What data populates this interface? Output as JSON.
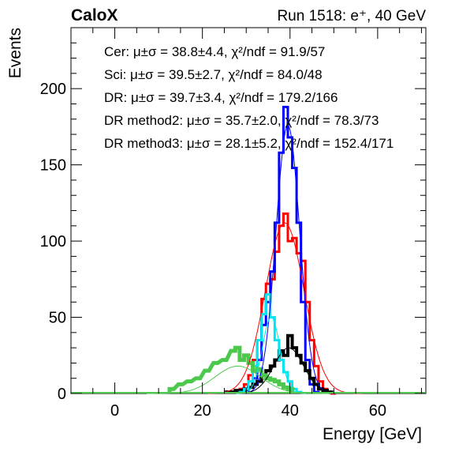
{
  "header": {
    "experiment": "CaloX",
    "run_info": "Run 1518: e⁺, 40 GeV"
  },
  "colors": {
    "cer": "#ff0000",
    "sci": "#0000ff",
    "dr": "#000000",
    "dr_method2": "#00e5ee",
    "dr_method3": "#4cc94c",
    "axes": "#000000"
  },
  "chart_data": {
    "type": "line",
    "xlabel": "Energy [GeV]",
    "ylabel": "Events",
    "xlim": [
      -10,
      71
    ],
    "ylim": [
      0,
      240
    ],
    "x_ticks": [
      0,
      20,
      40,
      60
    ],
    "y_ticks": [
      0,
      50,
      100,
      150,
      200
    ],
    "annotations": [
      "Cer: μ±σ = 38.8±4.4, χ²/ndf = 91.9/57",
      "Sci: μ±σ = 39.5±2.7, χ²/ndf = 84.0/48",
      "DR: μ±σ = 39.7±3.4, χ²/ndf = 179.2/166",
      "DR method2: μ±σ = 35.7±2.0, χ²/ndf = 78.3/73",
      "DR method3: μ±σ = 28.1±5.2, χ²/ndf = 152.4/171"
    ],
    "series": [
      {
        "key": "cer",
        "style": "step",
        "x": [
          28,
          29,
          30,
          31,
          32,
          33,
          34,
          35,
          36,
          37,
          38,
          39,
          40,
          41,
          42,
          43,
          44,
          45,
          46,
          47,
          48,
          49,
          50
        ],
        "y": [
          1,
          3,
          6,
          12,
          22,
          35,
          62,
          72,
          75,
          93,
          110,
          118,
          100,
          102,
          92,
          87,
          60,
          35,
          18,
          8,
          3,
          1,
          0
        ]
      },
      {
        "key": "sci",
        "style": "step",
        "x": [
          30,
          31,
          32,
          33,
          34,
          35,
          36,
          37,
          38,
          39,
          40,
          41,
          42,
          43,
          44,
          45,
          46
        ],
        "y": [
          1,
          4,
          10,
          22,
          45,
          60,
          80,
          112,
          158,
          188,
          168,
          148,
          112,
          60,
          22,
          6,
          1
        ]
      },
      {
        "key": "dr",
        "style": "step",
        "x": [
          26,
          27,
          28,
          29,
          30,
          31,
          32,
          33,
          34,
          35,
          36,
          37,
          38,
          39,
          40,
          41,
          42,
          43,
          44,
          45,
          46,
          47,
          48,
          49
        ],
        "y": [
          1,
          1,
          2,
          2,
          3,
          4,
          6,
          8,
          12,
          15,
          18,
          22,
          28,
          25,
          38,
          30,
          25,
          20,
          15,
          10,
          6,
          3,
          2,
          1
        ]
      },
      {
        "key": "dr_method2",
        "style": "step",
        "x": [
          29,
          30,
          31,
          32,
          33,
          34,
          35,
          36,
          37,
          38,
          39,
          40,
          41,
          42
        ],
        "y": [
          1,
          3,
          8,
          18,
          35,
          52,
          65,
          50,
          35,
          22,
          14,
          8,
          3,
          1
        ]
      },
      {
        "key": "dr_method3",
        "style": "step",
        "x": [
          13,
          15,
          17,
          19,
          21,
          23,
          25,
          27,
          28,
          29,
          30,
          31,
          32,
          33,
          34,
          35,
          36,
          37,
          38,
          39,
          40
        ],
        "y": [
          3,
          6,
          8,
          10,
          15,
          20,
          22,
          28,
          30,
          22,
          25,
          20,
          15,
          16,
          12,
          10,
          9,
          8,
          6,
          4,
          3
        ]
      },
      {
        "key": "fit_cer",
        "style": "gauss",
        "mu": 38.8,
        "sigma": 4.4,
        "amp": 112
      },
      {
        "key": "fit_sci",
        "style": "gauss",
        "mu": 39.5,
        "sigma": 2.7,
        "amp": 176
      },
      {
        "key": "fit_dr",
        "style": "gauss",
        "mu": 39.7,
        "sigma": 3.4,
        "amp": 30
      },
      {
        "key": "fit_dr_method2",
        "style": "gauss",
        "mu": 35.7,
        "sigma": 2.0,
        "amp": 50
      },
      {
        "key": "fit_dr_method3",
        "style": "gauss",
        "mu": 28.1,
        "sigma": 5.2,
        "amp": 18
      }
    ]
  }
}
